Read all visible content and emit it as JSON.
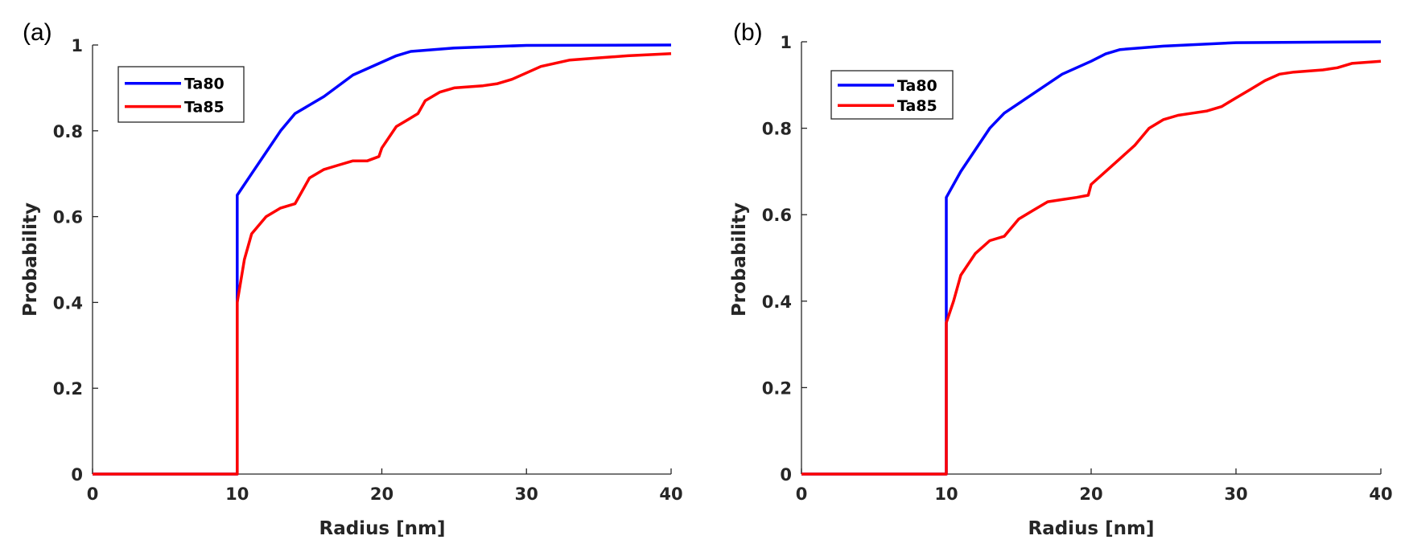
{
  "chart_data": [
    {
      "type": "line",
      "panel_label": "(a)",
      "xlabel": "Radius [nm]",
      "ylabel": "Probability",
      "xlim": [
        0,
        40
      ],
      "ylim": [
        0,
        1
      ],
      "xticks": [
        "0",
        "10",
        "20",
        "30",
        "40"
      ],
      "yticks": [
        "0",
        "0.2",
        "0.4",
        "0.6",
        "0.8",
        "1"
      ],
      "grid": false,
      "legend": "top-left",
      "series": [
        {
          "name": "Ta80",
          "color": "#0000ff",
          "x": [
            0,
            10,
            10,
            11,
            12,
            13,
            14,
            16,
            18,
            20,
            21,
            22,
            25,
            30,
            40
          ],
          "y": [
            0,
            0,
            0.65,
            0.7,
            0.75,
            0.8,
            0.84,
            0.88,
            0.93,
            0.96,
            0.975,
            0.985,
            0.993,
            0.999,
            1.0
          ]
        },
        {
          "name": "Ta85",
          "color": "#ff0000",
          "x": [
            0,
            10,
            10,
            10.5,
            11,
            12,
            13,
            14,
            14.5,
            15,
            16,
            17,
            18,
            19,
            19.8,
            20,
            21,
            22,
            22.5,
            23,
            24,
            25,
            27,
            28,
            29,
            30,
            31,
            33,
            35,
            37,
            40
          ],
          "y": [
            0,
            0,
            0.4,
            0.5,
            0.56,
            0.6,
            0.62,
            0.63,
            0.66,
            0.69,
            0.71,
            0.72,
            0.73,
            0.73,
            0.74,
            0.76,
            0.81,
            0.83,
            0.84,
            0.87,
            0.89,
            0.9,
            0.905,
            0.91,
            0.92,
            0.935,
            0.95,
            0.965,
            0.97,
            0.975,
            0.98
          ]
        }
      ]
    },
    {
      "type": "line",
      "panel_label": "(b)",
      "xlabel": "Radius [nm]",
      "ylabel": "Probability",
      "xlim": [
        0,
        40
      ],
      "ylim": [
        0,
        1
      ],
      "xticks": [
        "0",
        "10",
        "20",
        "30",
        "40"
      ],
      "yticks": [
        "0",
        "0.2",
        "0.4",
        "0.6",
        "0.8",
        "1"
      ],
      "grid": false,
      "legend": "top-left",
      "series": [
        {
          "name": "Ta80",
          "color": "#0000ff",
          "x": [
            0,
            10,
            10,
            11,
            12,
            13,
            14,
            16,
            18,
            20,
            21,
            22,
            25,
            30,
            40
          ],
          "y": [
            0,
            0,
            0.64,
            0.7,
            0.75,
            0.8,
            0.835,
            0.88,
            0.925,
            0.955,
            0.972,
            0.982,
            0.99,
            0.998,
            1.0
          ]
        },
        {
          "name": "Ta85",
          "color": "#ff0000",
          "x": [
            0,
            10,
            10,
            10.5,
            11,
            12,
            13,
            14,
            15,
            16,
            17,
            18,
            19,
            19.8,
            20,
            21,
            22,
            23,
            24,
            25,
            26,
            27,
            28,
            29,
            30,
            31,
            32,
            33,
            34,
            36,
            37,
            38,
            40
          ],
          "y": [
            0,
            0,
            0.35,
            0.4,
            0.46,
            0.51,
            0.54,
            0.55,
            0.59,
            0.61,
            0.63,
            0.635,
            0.64,
            0.645,
            0.67,
            0.7,
            0.73,
            0.76,
            0.8,
            0.82,
            0.83,
            0.835,
            0.84,
            0.85,
            0.87,
            0.89,
            0.91,
            0.925,
            0.93,
            0.935,
            0.94,
            0.95,
            0.955
          ]
        }
      ]
    }
  ]
}
